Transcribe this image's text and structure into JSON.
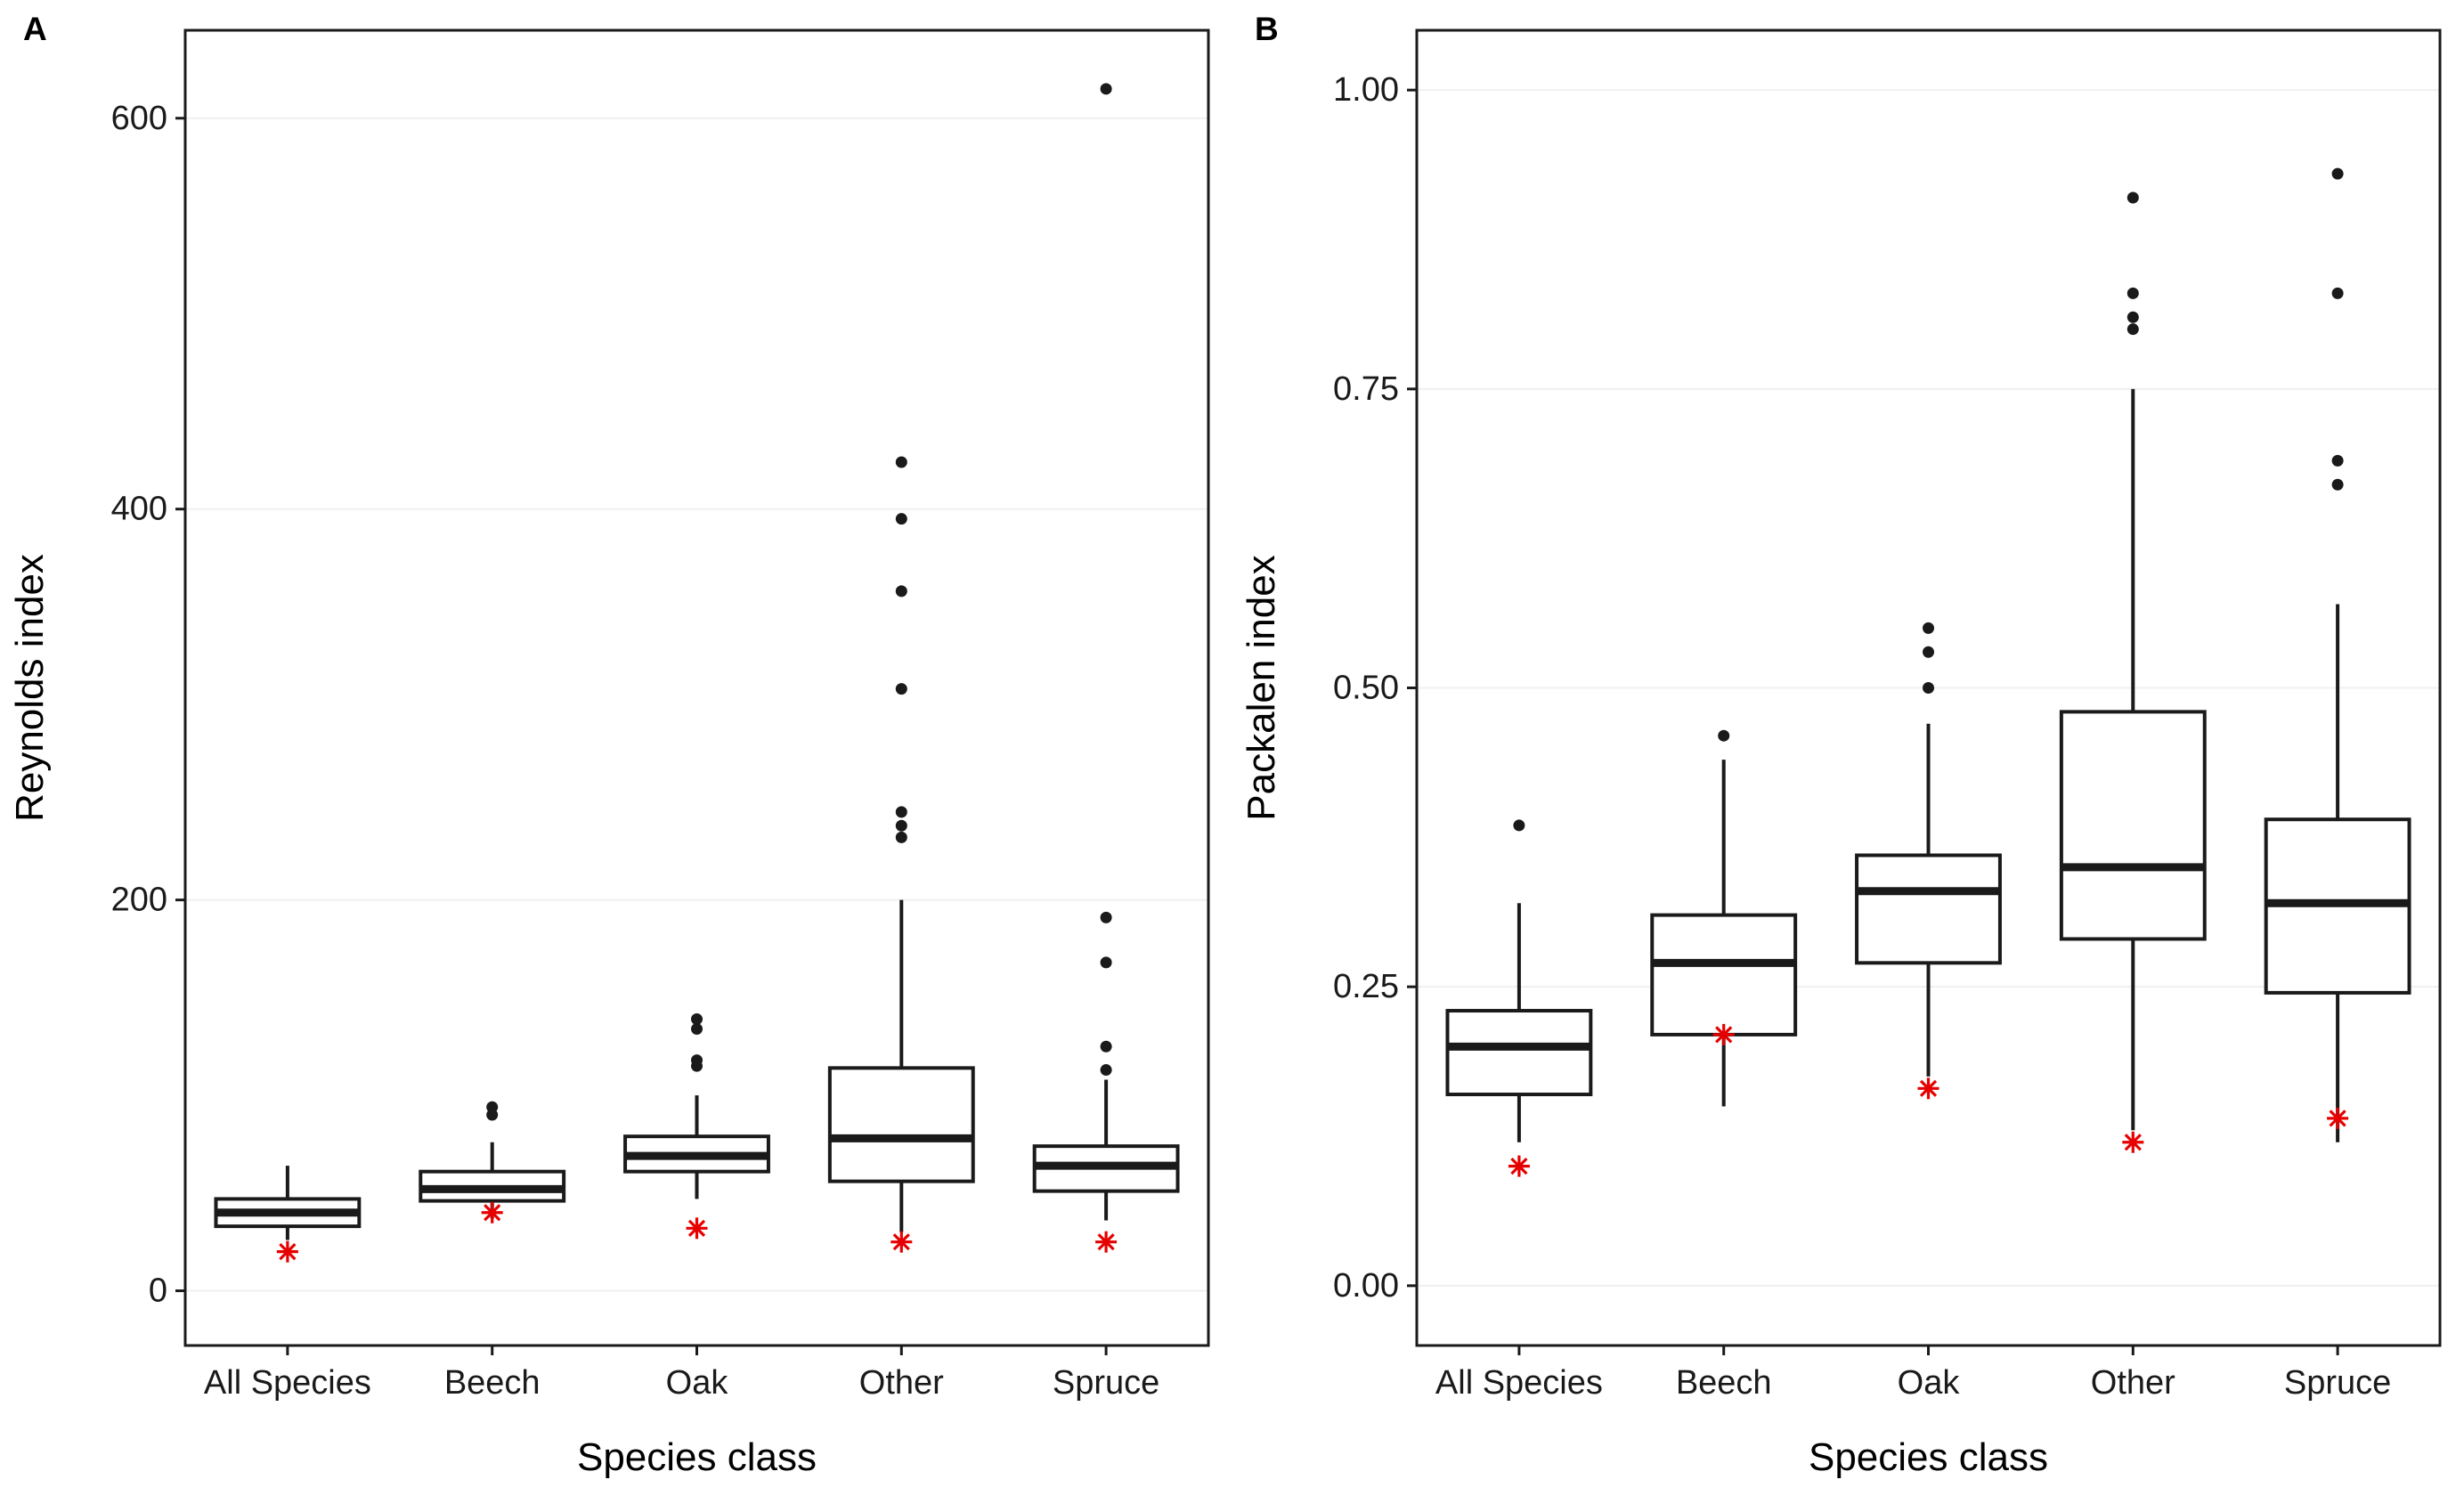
{
  "style": {
    "background": "#ffffff",
    "panel_border": "#1a1a1a",
    "grid": "#f0f0f0",
    "box_stroke": "#1a1a1a",
    "box_fill": "#ffffff",
    "outlier": "#1a1a1a",
    "red_star": "#e60000",
    "tick_text": "#1a1a1a",
    "title_text": "#000000"
  },
  "chart_data": [
    {
      "type": "boxplot",
      "panel_label": "A",
      "title": "",
      "xlabel": "Species class",
      "ylabel": "Reynolds index",
      "legend": "none",
      "grid": true,
      "categories": [
        "All Species",
        "Beech",
        "Oak",
        "Other",
        "Spruce"
      ],
      "ylim": [
        -28,
        645
      ],
      "yticks": [
        0,
        200,
        400,
        600
      ],
      "ytick_labels": [
        "0",
        "200",
        "400",
        "600"
      ],
      "series": [
        {
          "category": "All Species",
          "whisker_low": 26,
          "q1": 33,
          "median": 40,
          "q3": 47,
          "whisker_high": 64,
          "outliers": [],
          "red_star": 20
        },
        {
          "category": "Beech",
          "whisker_low": 37,
          "q1": 46,
          "median": 52,
          "q3": 61,
          "whisker_high": 76,
          "outliers": [
            90,
            94
          ],
          "red_star": 40
        },
        {
          "category": "Oak",
          "whisker_low": 47,
          "q1": 61,
          "median": 69,
          "q3": 79,
          "whisker_high": 100,
          "outliers": [
            115,
            118,
            134,
            139
          ],
          "red_star": 32
        },
        {
          "category": "Other",
          "whisker_low": 30,
          "q1": 56,
          "median": 78,
          "q3": 114,
          "whisker_high": 200,
          "outliers": [
            232,
            238,
            245,
            308,
            358,
            395,
            424
          ],
          "red_star": 25
        },
        {
          "category": "Spruce",
          "whisker_low": 36,
          "q1": 51,
          "median": 64,
          "q3": 74,
          "whisker_high": 108,
          "outliers": [
            113,
            125,
            168,
            191,
            615
          ],
          "red_star": 25
        }
      ]
    },
    {
      "type": "boxplot",
      "panel_label": "B",
      "title": "",
      "xlabel": "Species class",
      "ylabel": "Packalen index",
      "legend": "none",
      "grid": true,
      "categories": [
        "All Species",
        "Beech",
        "Oak",
        "Other",
        "Spruce"
      ],
      "ylim": [
        -0.05,
        1.05
      ],
      "yticks": [
        0,
        0.25,
        0.5,
        0.75,
        1
      ],
      "ytick_labels": [
        "0.00",
        "0.25",
        "0.50",
        "0.75",
        "1.00"
      ],
      "series": [
        {
          "category": "All Species",
          "whisker_low": 0.12,
          "q1": 0.16,
          "median": 0.2,
          "q3": 0.23,
          "whisker_high": 0.32,
          "outliers": [
            0.385
          ],
          "red_star": 0.1
        },
        {
          "category": "Beech",
          "whisker_low": 0.15,
          "q1": 0.21,
          "median": 0.27,
          "q3": 0.31,
          "whisker_high": 0.44,
          "outliers": [
            0.46
          ],
          "red_star": 0.21
        },
        {
          "category": "Oak",
          "whisker_low": 0.175,
          "q1": 0.27,
          "median": 0.33,
          "q3": 0.36,
          "whisker_high": 0.47,
          "outliers": [
            0.5,
            0.53,
            0.55
          ],
          "red_star": 0.165
        },
        {
          "category": "Other",
          "whisker_low": 0.13,
          "q1": 0.29,
          "median": 0.35,
          "q3": 0.48,
          "whisker_high": 0.75,
          "outliers": [
            0.8,
            0.81,
            0.83,
            0.91
          ],
          "red_star": 0.12
        },
        {
          "category": "Spruce",
          "whisker_low": 0.12,
          "q1": 0.245,
          "median": 0.32,
          "q3": 0.39,
          "whisker_high": 0.57,
          "outliers": [
            0.67,
            0.69,
            0.83,
            0.93
          ],
          "red_star": 0.14
        }
      ]
    }
  ]
}
